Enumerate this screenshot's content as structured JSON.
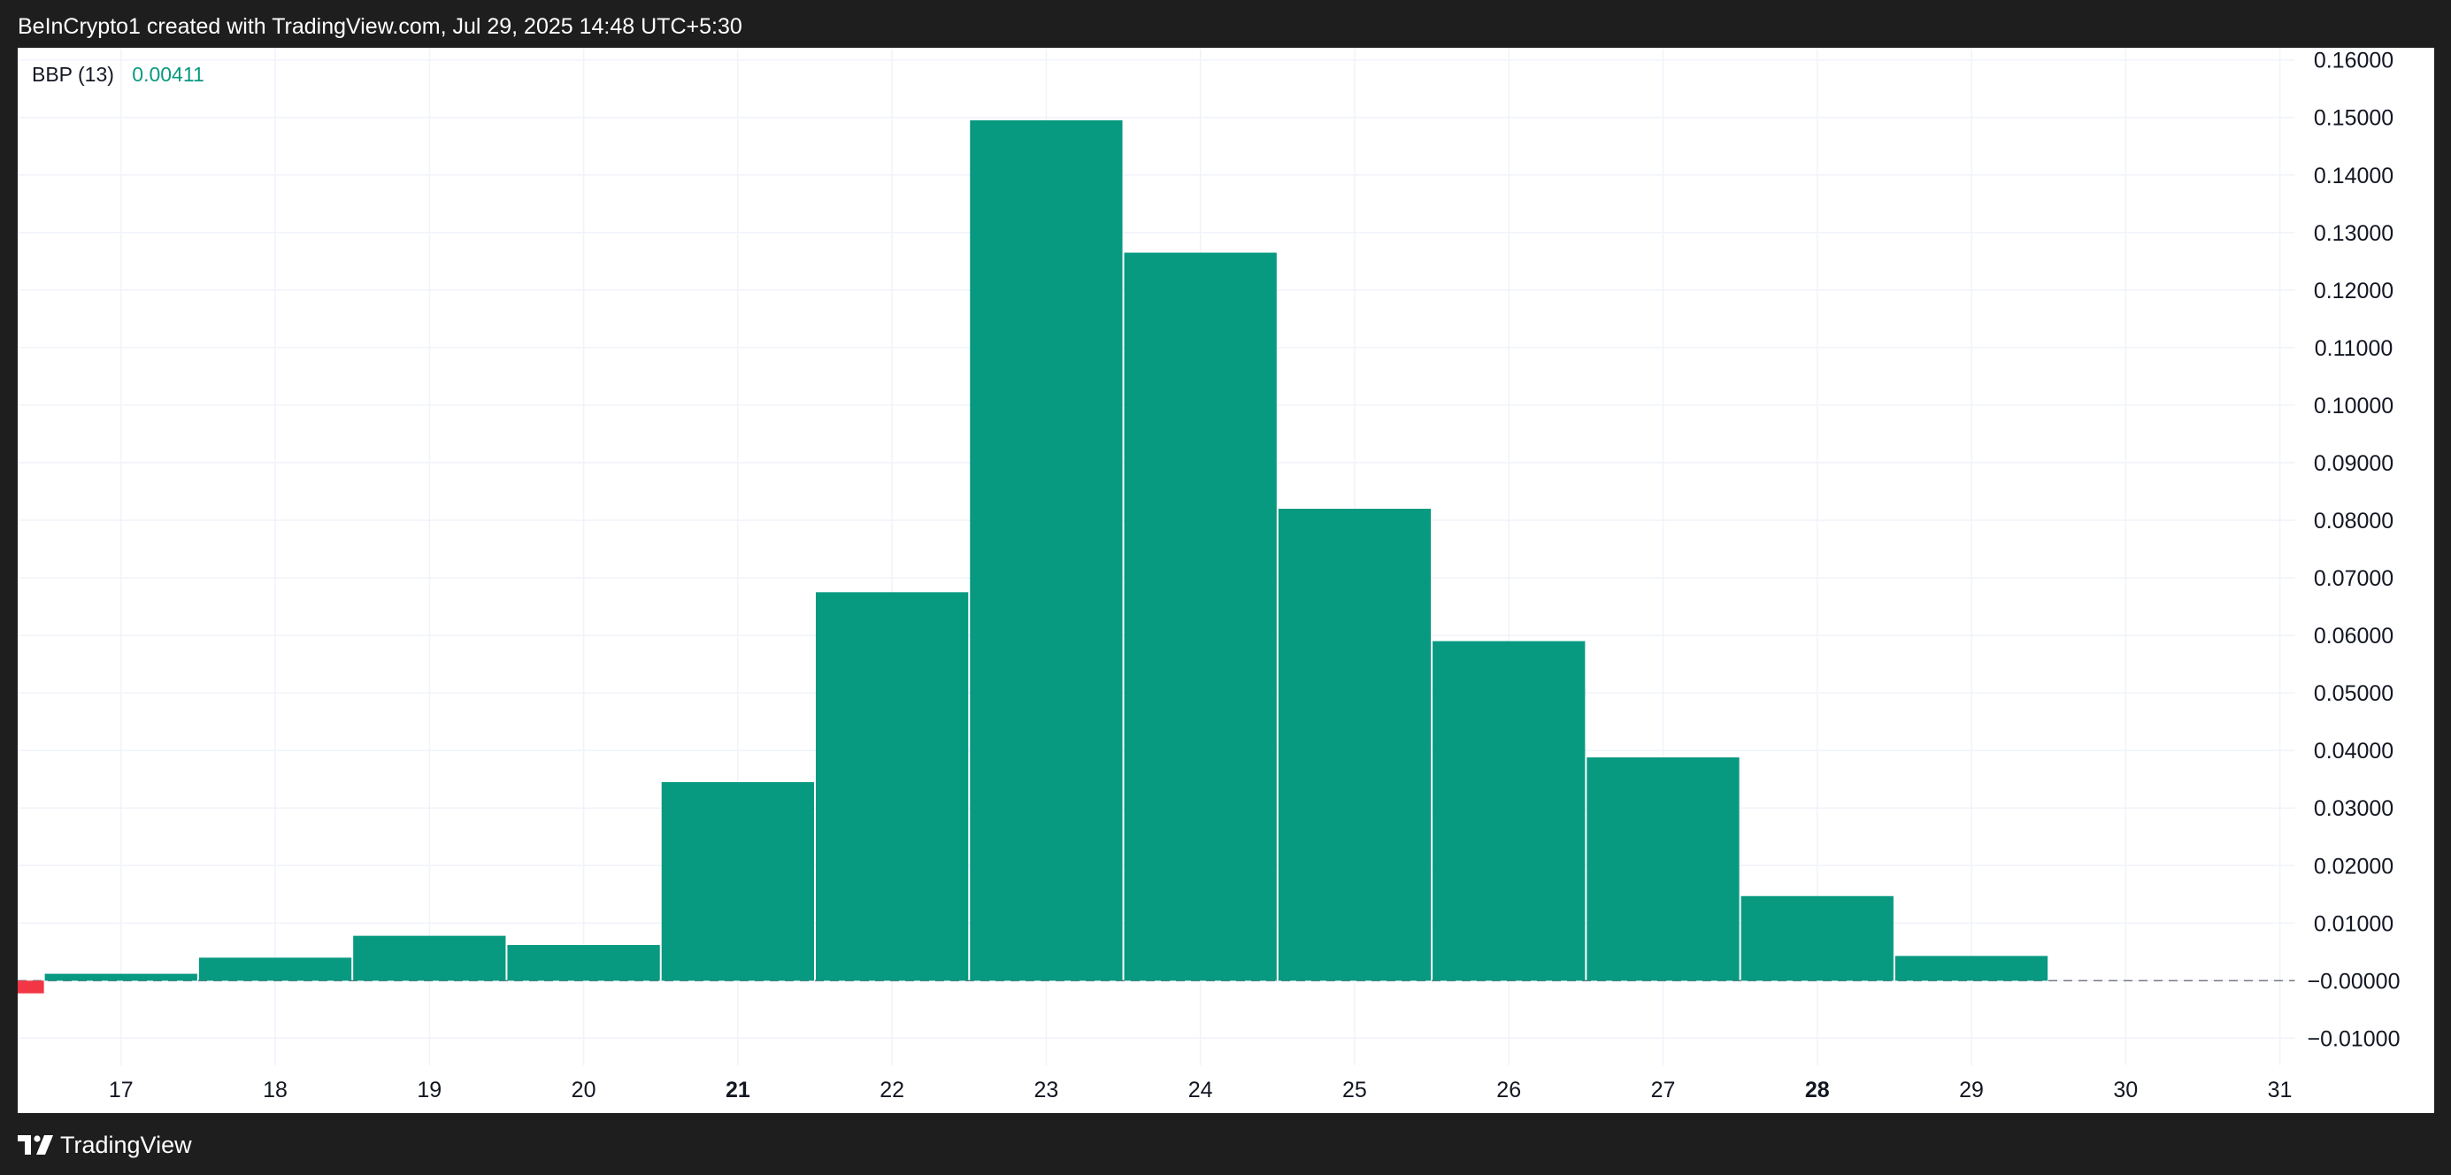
{
  "header": {
    "credit": "BeInCrypto1 created with TradingView.com, Jul 29, 2025 14:48 UTC+5:30"
  },
  "legend": {
    "indicator": "BBP (13)",
    "value": "0.00411"
  },
  "footer": {
    "brand": "TradingView",
    "logo_icon": "tradingview-logo-icon"
  },
  "colors": {
    "positive": "#089981",
    "negative": "#f23645",
    "grid": "#f0f3fa",
    "text": "#131722",
    "frame": "#1e1e1e"
  },
  "chart_data": {
    "type": "bar",
    "title": "",
    "xlabel": "",
    "ylabel": "",
    "x_ticks": [
      {
        "label": "17",
        "bold": false
      },
      {
        "label": "18",
        "bold": false
      },
      {
        "label": "19",
        "bold": false
      },
      {
        "label": "20",
        "bold": false
      },
      {
        "label": "21",
        "bold": true
      },
      {
        "label": "22",
        "bold": false
      },
      {
        "label": "23",
        "bold": false
      },
      {
        "label": "24",
        "bold": false
      },
      {
        "label": "25",
        "bold": false
      },
      {
        "label": "26",
        "bold": false
      },
      {
        "label": "27",
        "bold": false
      },
      {
        "label": "28",
        "bold": true
      },
      {
        "label": "29",
        "bold": false
      },
      {
        "label": "30",
        "bold": false
      },
      {
        "label": "31",
        "bold": false
      }
    ],
    "xlim": [
      16.33,
      31.1
    ],
    "ylim": [
      -0.0147,
      0.1621
    ],
    "y_ticks": [
      "0.16000",
      "0.15000",
      "0.14000",
      "0.13000",
      "0.12000",
      "0.11000",
      "0.10000",
      "0.09000",
      "0.08000",
      "0.07000",
      "0.06000",
      "0.05000",
      "0.04000",
      "0.03000",
      "0.02000",
      "0.01000",
      "−0.00000",
      "−0.01000"
    ],
    "y_tick_values": [
      0.16,
      0.15,
      0.14,
      0.13,
      0.12,
      0.11,
      0.1,
      0.09,
      0.08,
      0.07,
      0.06,
      0.05,
      0.04,
      0.03,
      0.02,
      0.01,
      0.0,
      -0.01
    ],
    "grid": true,
    "zero_line": "dashed",
    "series": [
      {
        "x": [
          16.5,
          17,
          18,
          19,
          20,
          21,
          22,
          23,
          24,
          25,
          26,
          27,
          28,
          29
        ],
        "values": [
          -0.0022,
          0.0012,
          0.004,
          0.0078,
          0.0062,
          0.0345,
          0.0675,
          0.1495,
          0.1265,
          0.082,
          0.059,
          0.0388,
          0.0147,
          0.0043
        ]
      }
    ]
  }
}
